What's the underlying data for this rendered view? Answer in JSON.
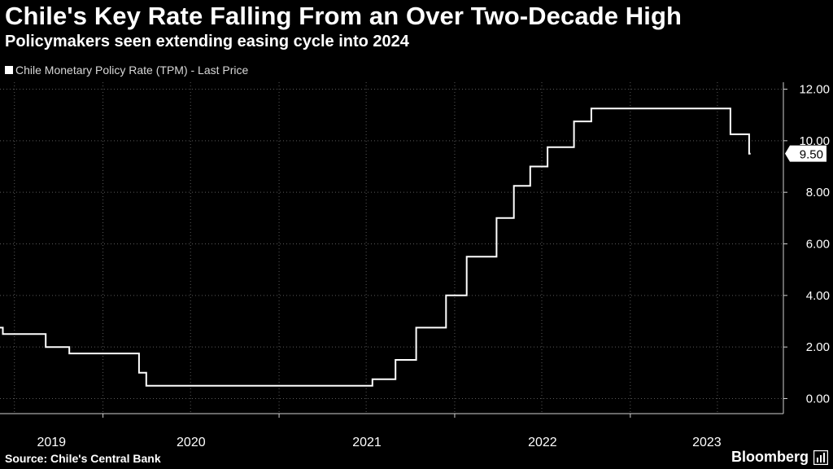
{
  "chart_data": {
    "type": "line",
    "title": "Chile's Key Rate Falling From an Over Two-Decade High",
    "subtitle": "Policymakers seen extending easing cycle into 2024",
    "series": [
      {
        "name": "Chile Monetary Policy Rate (TPM) - Last Price",
        "points": [
          [
            "2019-01-01",
            2.75
          ],
          [
            "2019-06-07",
            2.5
          ],
          [
            "2019-09-04",
            2.0
          ],
          [
            "2019-10-23",
            1.75
          ],
          [
            "2020-03-16",
            1.0
          ],
          [
            "2020-03-31",
            0.5
          ],
          [
            "2021-07-14",
            0.75
          ],
          [
            "2021-08-31",
            1.5
          ],
          [
            "2021-10-13",
            2.75
          ],
          [
            "2021-12-14",
            4.0
          ],
          [
            "2022-01-26",
            5.5
          ],
          [
            "2022-03-29",
            7.0
          ],
          [
            "2022-05-04",
            8.25
          ],
          [
            "2022-06-07",
            9.0
          ],
          [
            "2022-07-13",
            9.75
          ],
          [
            "2022-09-06",
            10.75
          ],
          [
            "2022-10-12",
            11.25
          ],
          [
            "2023-07-28",
            10.25
          ],
          [
            "2023-09-05",
            9.5
          ],
          [
            "2023-09-08",
            9.5
          ]
        ]
      }
    ],
    "last_value_label": "9.50",
    "y_ticks": [
      "0.00",
      "2.00",
      "4.00",
      "6.00",
      "8.00",
      "10.00",
      "12.00"
    ],
    "y_tick_values": [
      0,
      2,
      4,
      6,
      8,
      10,
      12
    ],
    "ylim": [
      0,
      12
    ],
    "x_tick_labels": [
      "2019",
      "2020",
      "2021",
      "2022",
      "2023"
    ],
    "x_range": [
      "2019-06-01",
      "2023-10-14"
    ],
    "grid": true,
    "legend_position": "top-left",
    "line_color": "#ffffff",
    "grid_color": "#5a5a5a"
  },
  "source": "Source: Chile's Central Bank",
  "brand": "Bloomberg"
}
